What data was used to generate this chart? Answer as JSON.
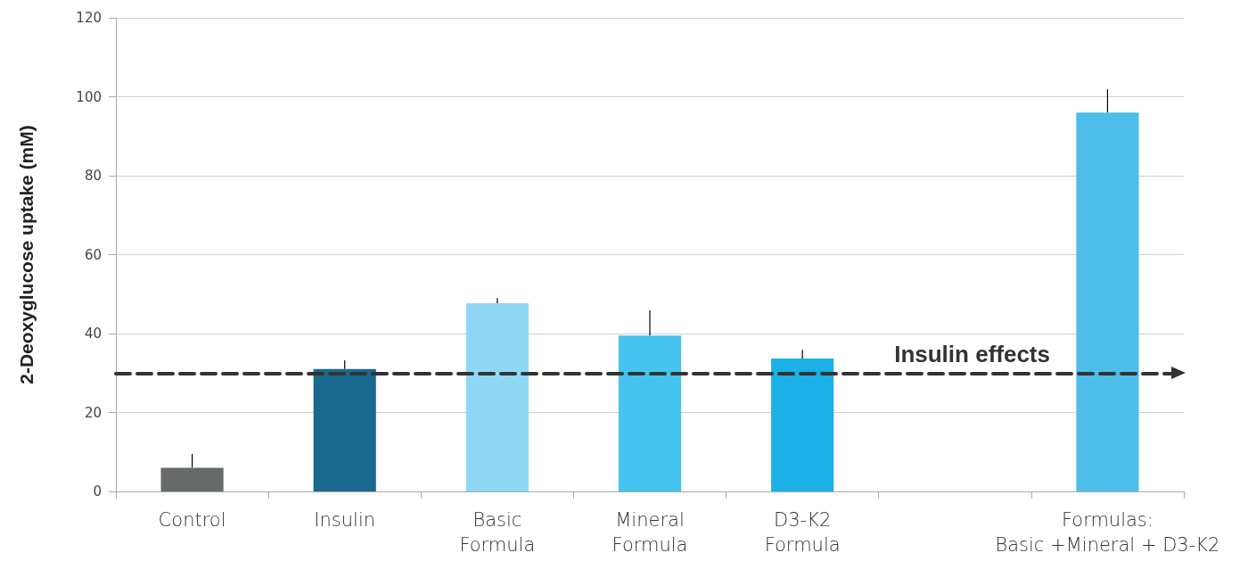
{
  "chart_data": {
    "type": "bar",
    "ylabel": "2-Deoxyglucose uptake (mM)",
    "categories": [
      "Control",
      "Insulin",
      "Basic\nFormula",
      "Mineral\nFormula",
      "D3-K2\nFormula",
      null,
      "Formulas:\nBasic +Mineral + D3-K2"
    ],
    "values": [
      6,
      31,
      47.7,
      39.5,
      33.7,
      null,
      96
    ],
    "colors": [
      "#666a6a",
      "#1a698f",
      "#8ed8f6",
      "#45c4f0",
      "#1bb0e6",
      null,
      "#4dbde9"
    ],
    "errors": [
      [
        6,
        9.5
      ],
      [
        31,
        33.2
      ],
      [
        47.7,
        49
      ],
      [
        39.5,
        45.9
      ],
      [
        33.7,
        35.9
      ],
      null,
      [
        96,
        101.9
      ]
    ],
    "ylim": [
      0,
      120
    ],
    "yticks": [
      0,
      20,
      40,
      60,
      80,
      100,
      120
    ],
    "grid": "y",
    "ref_lines": [
      {
        "axis": "y",
        "value": 30,
        "label": "Insulin effects",
        "color": "#333333",
        "line_style": "dashed"
      }
    ]
  }
}
